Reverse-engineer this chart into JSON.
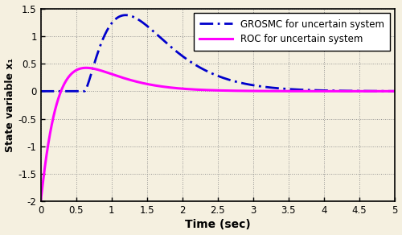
{
  "xlabel": "Time (sec)",
  "ylabel": "State variable x₁",
  "xlim": [
    0,
    5
  ],
  "ylim": [
    -2,
    1.5
  ],
  "xticks": [
    0,
    0.5,
    1.0,
    1.5,
    2.0,
    2.5,
    3.0,
    3.5,
    4.0,
    4.5,
    5.0
  ],
  "yticks": [
    -2,
    -1.5,
    -1,
    -0.5,
    0,
    0.5,
    1,
    1.5
  ],
  "grosmc_color": "#0000CC",
  "roc_color": "#FF00FF",
  "legend_grosmc": "GROSMC for uncertain system",
  "legend_roc": "ROC for uncertain system",
  "bg_color": "#f5f0e0",
  "grid_color": "#888888",
  "grosmc_lw": 2.0,
  "roc_lw": 2.2
}
